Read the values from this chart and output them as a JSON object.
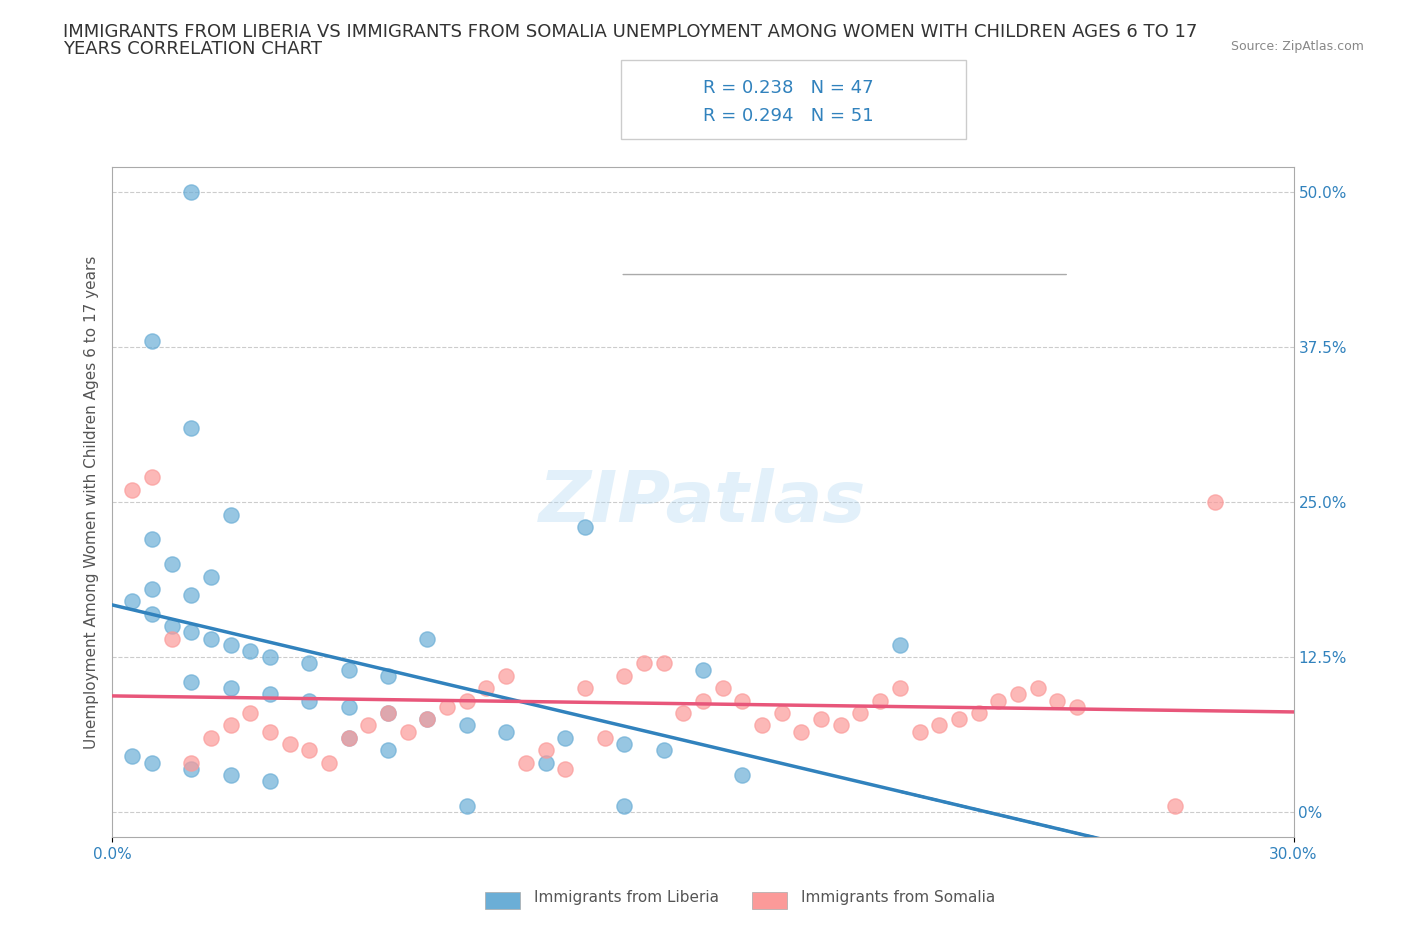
{
  "title_line1": "IMMIGRANTS FROM LIBERIA VS IMMIGRANTS FROM SOMALIA UNEMPLOYMENT AMONG WOMEN WITH CHILDREN AGES 6 TO 17",
  "title_line2": "YEARS CORRELATION CHART",
  "source_text": "Source: ZipAtlas.com",
  "ylabel": "Unemployment Among Women with Children Ages 6 to 17 years",
  "xlabel": "",
  "xlim": [
    0.0,
    0.3
  ],
  "ylim": [
    -0.02,
    0.52
  ],
  "xticks": [
    0.0,
    0.05,
    0.1,
    0.15,
    0.2,
    0.25,
    0.3
  ],
  "xticklabels": [
    "0.0%",
    "",
    "",
    "",
    "",
    "",
    "30.0%"
  ],
  "ytick_positions": [
    0.0,
    0.125,
    0.25,
    0.375,
    0.5
  ],
  "ytick_labels_right": [
    "0%",
    "12.5%",
    "25.0%",
    "37.5%",
    "50.0%"
  ],
  "color_liberia": "#6baed6",
  "color_somalia": "#fb9a99",
  "color_liberia_line": "#3182bd",
  "color_somalia_line": "#e41a1c",
  "R_liberia": 0.238,
  "N_liberia": 47,
  "R_somalia": 0.294,
  "N_somalia": 51,
  "legend_label_liberia": "Immigrants from Liberia",
  "legend_label_somalia": "Immigrants from Somalia",
  "watermark": "ZIPatlas",
  "background_color": "#ffffff",
  "grid_color": "#cccccc",
  "title_fontsize": 13,
  "axis_label_fontsize": 11,
  "tick_fontsize": 11,
  "legend_R_color": "#3182bd",
  "liberia_x": [
    0.02,
    0.01,
    0.02,
    0.03,
    0.01,
    0.015,
    0.025,
    0.01,
    0.02,
    0.005,
    0.01,
    0.015,
    0.02,
    0.025,
    0.03,
    0.035,
    0.04,
    0.05,
    0.06,
    0.07,
    0.02,
    0.03,
    0.04,
    0.05,
    0.06,
    0.07,
    0.08,
    0.09,
    0.1,
    0.115,
    0.13,
    0.14,
    0.005,
    0.01,
    0.02,
    0.03,
    0.04,
    0.2,
    0.12,
    0.15,
    0.08,
    0.06,
    0.07,
    0.09,
    0.11,
    0.13,
    0.16
  ],
  "liberia_y": [
    0.5,
    0.38,
    0.31,
    0.24,
    0.22,
    0.2,
    0.19,
    0.18,
    0.175,
    0.17,
    0.16,
    0.15,
    0.145,
    0.14,
    0.135,
    0.13,
    0.125,
    0.12,
    0.115,
    0.11,
    0.105,
    0.1,
    0.095,
    0.09,
    0.085,
    0.08,
    0.075,
    0.07,
    0.065,
    0.06,
    0.055,
    0.05,
    0.045,
    0.04,
    0.035,
    0.03,
    0.025,
    0.135,
    0.23,
    0.115,
    0.14,
    0.06,
    0.05,
    0.005,
    0.04,
    0.005,
    0.03
  ],
  "somalia_x": [
    0.005,
    0.01,
    0.015,
    0.02,
    0.025,
    0.03,
    0.035,
    0.04,
    0.045,
    0.05,
    0.055,
    0.06,
    0.065,
    0.07,
    0.075,
    0.08,
    0.085,
    0.09,
    0.095,
    0.1,
    0.105,
    0.11,
    0.115,
    0.12,
    0.125,
    0.13,
    0.135,
    0.14,
    0.145,
    0.15,
    0.155,
    0.16,
    0.165,
    0.17,
    0.175,
    0.18,
    0.185,
    0.19,
    0.195,
    0.2,
    0.205,
    0.21,
    0.215,
    0.22,
    0.225,
    0.23,
    0.235,
    0.24,
    0.245,
    0.27,
    0.28
  ],
  "somalia_y": [
    0.26,
    0.27,
    0.14,
    0.04,
    0.06,
    0.07,
    0.08,
    0.065,
    0.055,
    0.05,
    0.04,
    0.06,
    0.07,
    0.08,
    0.065,
    0.075,
    0.085,
    0.09,
    0.1,
    0.11,
    0.04,
    0.05,
    0.035,
    0.1,
    0.06,
    0.11,
    0.12,
    0.12,
    0.08,
    0.09,
    0.1,
    0.09,
    0.07,
    0.08,
    0.065,
    0.075,
    0.07,
    0.08,
    0.09,
    0.1,
    0.065,
    0.07,
    0.075,
    0.08,
    0.09,
    0.095,
    0.1,
    0.09,
    0.085,
    0.005,
    0.25
  ]
}
